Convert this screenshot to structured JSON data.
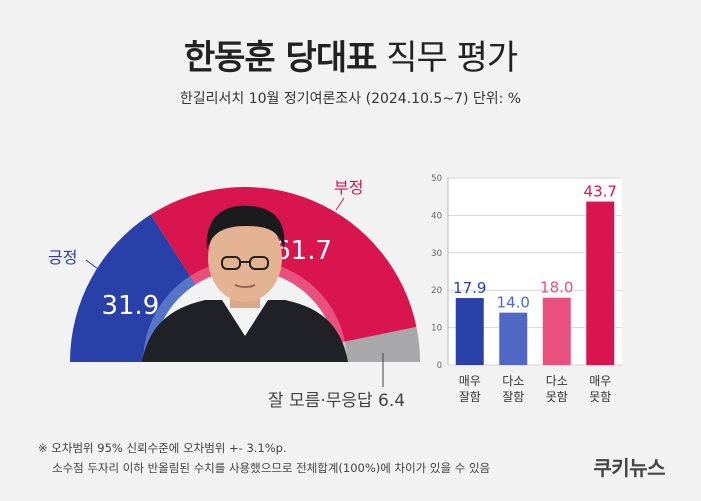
{
  "title": {
    "bold": "한동훈 당대표",
    "light": "직무 평가"
  },
  "subtitle": "한길리서치 10월 정기여론조사 (2024.10.5~7) 단위: %",
  "footnote": {
    "line1": "※ 오차범위 95% 신뢰수준에 오차범위 +- 3.1%p.",
    "line2": "소수점 두자리 이하 반올림된 수치를 사용했으므로 전체합계(100%)에 차이가 있을 수 있음"
  },
  "brand": "쿠키뉴스",
  "colors": {
    "positive": "#2940a8",
    "negative": "#d9154f",
    "unknown": "#a8a8aa",
    "positive_light": "#5575c8",
    "negative_light": "#e8517e",
    "background": "#f2f2f2"
  },
  "photo": {
    "icon": "person-portrait-icon"
  },
  "chart_data": [
    {
      "type": "pie",
      "variant": "semicircle-donut",
      "slices": [
        {
          "label": "긍정",
          "value": 31.9,
          "display": "31.9",
          "color": "#2940a8"
        },
        {
          "label": "부정",
          "value": 61.7,
          "display": "61.7",
          "color": "#d9154f"
        },
        {
          "label": "잘 모름·무응답",
          "value": 6.4,
          "display": "잘 모름·무응답 6.4",
          "color": "#a8a8aa"
        }
      ]
    },
    {
      "type": "bar",
      "categories": [
        "매우\n잘함",
        "다소\n잘함",
        "다소\n못함",
        "매우\n못함"
      ],
      "category_lines": [
        [
          "매우",
          "잘함"
        ],
        [
          "다소",
          "잘함"
        ],
        [
          "다소",
          "못함"
        ],
        [
          "매우",
          "못함"
        ]
      ],
      "values": [
        17.9,
        14.0,
        18.0,
        43.7
      ],
      "value_labels": [
        "17.9",
        "14.0",
        "18.0",
        "43.7"
      ],
      "colors": [
        "#2940a8",
        "#5068c4",
        "#e8517e",
        "#d9154f"
      ],
      "ylim": [
        0,
        50
      ],
      "yticks": [
        0,
        10,
        20,
        30,
        40,
        50
      ],
      "grid": true
    }
  ]
}
